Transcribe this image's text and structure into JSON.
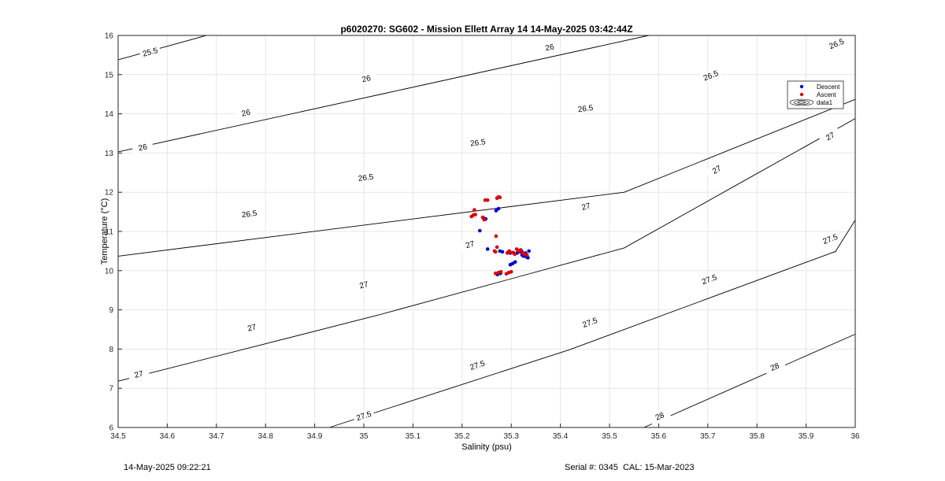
{
  "footer": {
    "timestamp": "14-May-2025 09:22:21",
    "serial_cal": "Serial #: 0345  CAL: 15-Mar-2023"
  },
  "chart_data": {
    "type": "scatter",
    "title": "p6020270: SG602 - Mission Ellett Array 14 14-May-2025 03:42:44Z",
    "xlabel": "Salinity (psu)",
    "ylabel": "Temperature (°C)",
    "xlim": [
      34.5,
      36
    ],
    "ylim": [
      6,
      16
    ],
    "xticks": [
      "34.5",
      "34.6",
      "34.7",
      "34.8",
      "34.9",
      "35",
      "35.1",
      "35.2",
      "35.3",
      "35.4",
      "35.5",
      "35.6",
      "35.7",
      "35.8",
      "35.9",
      "36"
    ],
    "yticks": [
      "6",
      "7",
      "8",
      "9",
      "10",
      "11",
      "12",
      "13",
      "14",
      "15",
      "16"
    ],
    "grid": true,
    "legend_position": "top-right",
    "legend": [
      "Descent",
      "Ascent",
      "data1"
    ],
    "colors": {
      "Descent": "#0000cc",
      "Ascent": "#dd0000",
      "contour": "#000000",
      "grid": "#e6e6e6"
    },
    "series": [
      {
        "name": "Descent",
        "x": [
          35.236,
          35.243,
          35.248,
          35.269,
          35.274,
          35.252,
          35.277,
          35.282,
          35.293,
          35.298,
          35.304,
          35.312,
          35.318,
          35.321,
          35.325,
          35.331,
          35.334,
          35.336,
          35.329,
          35.322,
          35.308,
          35.303,
          35.298,
          35.278,
          35.272
        ],
        "y": [
          11.02,
          11.35,
          11.32,
          11.53,
          11.58,
          10.55,
          10.5,
          10.48,
          10.46,
          10.45,
          10.46,
          10.45,
          10.48,
          10.5,
          10.37,
          10.35,
          10.33,
          10.5,
          10.45,
          10.4,
          10.22,
          10.18,
          10.15,
          9.93,
          9.9
        ]
      },
      {
        "name": "Ascent",
        "x": [
          35.219,
          35.223,
          35.225,
          35.227,
          35.242,
          35.245,
          35.247,
          35.252,
          35.271,
          35.274,
          35.277,
          35.269,
          35.271,
          35.266,
          35.268,
          35.292,
          35.296,
          35.302,
          35.311,
          35.315,
          35.319,
          35.323,
          35.327,
          35.332,
          35.307,
          35.296,
          35.268,
          35.274,
          35.279,
          35.29,
          35.295,
          35.3
        ],
        "y": [
          11.38,
          11.42,
          11.55,
          11.43,
          11.36,
          11.3,
          11.8,
          11.8,
          11.85,
          11.88,
          11.87,
          10.88,
          10.6,
          10.5,
          10.48,
          10.45,
          10.48,
          10.46,
          10.55,
          10.5,
          10.53,
          10.45,
          10.42,
          10.4,
          10.42,
          10.5,
          9.93,
          9.95,
          9.97,
          9.92,
          9.95,
          9.97
        ]
      }
    ],
    "contours": [
      {
        "label": "25.5",
        "x": [
          34.5,
          34.68
        ],
        "y": [
          15.38,
          16.0
        ]
      },
      {
        "label": "26",
        "x": [
          34.5,
          35.58
        ],
        "y": [
          13.03,
          16.0
        ]
      },
      {
        "label": "26.5",
        "x": [
          34.5,
          35.53,
          36.0
        ],
        "y": [
          10.37,
          12.0,
          14.37
        ]
      },
      {
        "label": "27",
        "x": [
          34.5,
          35.03,
          35.53,
          36.0
        ],
        "y": [
          7.18,
          8.87,
          10.58,
          13.88
        ]
      },
      {
        "label": "27.5",
        "x": [
          34.93,
          35.42,
          35.96,
          36.0
        ],
        "y": [
          6.0,
          7.99,
          10.49,
          11.29
        ]
      },
      {
        "label": "28",
        "x": [
          35.57,
          36.0
        ],
        "y": [
          6.0,
          8.38
        ]
      }
    ],
    "contour_labels": [
      {
        "text": "25.5",
        "x": 34.565,
        "y": 15.58
      },
      {
        "text": "26",
        "x": 34.55,
        "y": 13.15
      },
      {
        "text": "26",
        "x": 34.76,
        "y": 14.03
      },
      {
        "text": "26",
        "x": 35.005,
        "y": 14.9
      },
      {
        "text": "26",
        "x": 35.378,
        "y": 15.7
      },
      {
        "text": "26.5",
        "x": 34.767,
        "y": 11.45
      },
      {
        "text": "26.5",
        "x": 35.004,
        "y": 12.38
      },
      {
        "text": "26.5",
        "x": 35.232,
        "y": 13.27
      },
      {
        "text": "26.5",
        "x": 35.451,
        "y": 14.14
      },
      {
        "text": "26.5",
        "x": 35.706,
        "y": 14.98
      },
      {
        "text": "26.5",
        "x": 35.962,
        "y": 15.79
      },
      {
        "text": "27",
        "x": 34.542,
        "y": 7.36
      },
      {
        "text": "27",
        "x": 34.772,
        "y": 8.55
      },
      {
        "text": "27",
        "x": 35.0,
        "y": 9.64
      },
      {
        "text": "27",
        "x": 35.216,
        "y": 10.67
      },
      {
        "text": "27",
        "x": 35.452,
        "y": 11.64
      },
      {
        "text": "27",
        "x": 35.718,
        "y": 12.58
      },
      {
        "text": "27",
        "x": 35.949,
        "y": 13.43
      },
      {
        "text": "27.5",
        "x": 35.0,
        "y": 6.3
      },
      {
        "text": "27.5",
        "x": 35.231,
        "y": 7.59
      },
      {
        "text": "27.5",
        "x": 35.46,
        "y": 8.68
      },
      {
        "text": "27.5",
        "x": 35.703,
        "y": 9.78
      },
      {
        "text": "27.5",
        "x": 35.949,
        "y": 10.81
      },
      {
        "text": "28",
        "x": 35.602,
        "y": 6.29
      },
      {
        "text": "28",
        "x": 35.836,
        "y": 7.55
      }
    ]
  }
}
